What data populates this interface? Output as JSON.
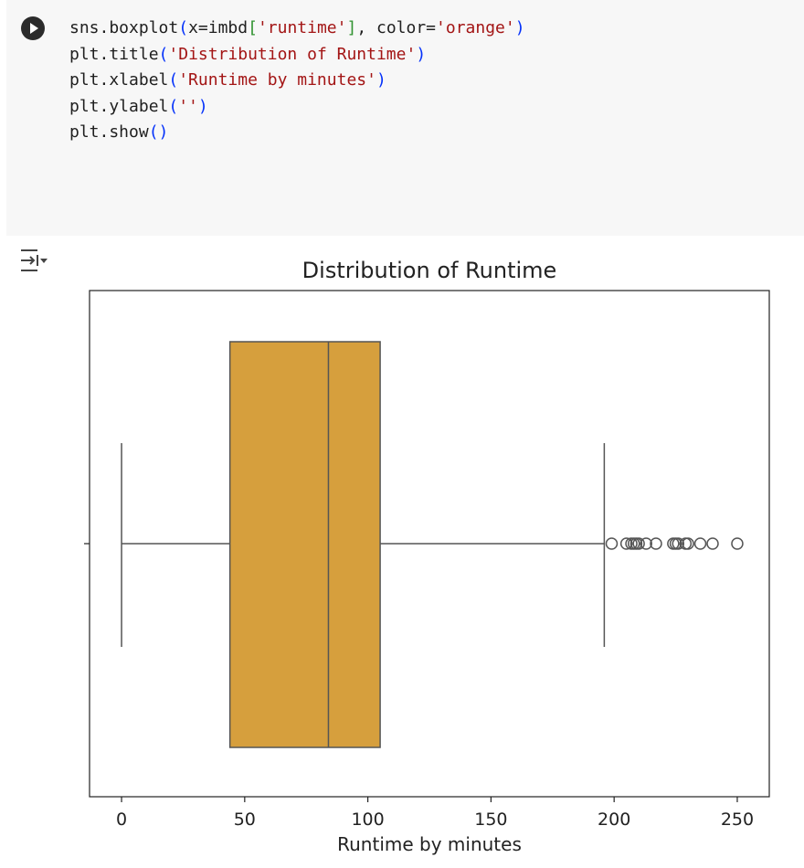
{
  "code_cell": {
    "run_icon": "play-icon",
    "lines": [
      [
        {
          "t": "sns.boxplot",
          "c": "plain"
        },
        {
          "t": "(",
          "c": "paren"
        },
        {
          "t": "x=imbd",
          "c": "plain"
        },
        {
          "t": "[",
          "c": "bracket"
        },
        {
          "t": "'runtime'",
          "c": "str"
        },
        {
          "t": "]",
          "c": "bracket"
        },
        {
          "t": ", color=",
          "c": "plain"
        },
        {
          "t": "'orange'",
          "c": "str"
        },
        {
          "t": ")",
          "c": "paren"
        }
      ],
      [
        {
          "t": "plt.title",
          "c": "plain"
        },
        {
          "t": "(",
          "c": "paren"
        },
        {
          "t": "'Distribution of Runtime'",
          "c": "str"
        },
        {
          "t": ")",
          "c": "paren"
        }
      ],
      [
        {
          "t": "plt.xlabel",
          "c": "plain"
        },
        {
          "t": "(",
          "c": "paren"
        },
        {
          "t": "'Runtime by minutes'",
          "c": "str"
        },
        {
          "t": ")",
          "c": "paren"
        }
      ],
      [
        {
          "t": "plt.ylabel",
          "c": "plain"
        },
        {
          "t": "(",
          "c": "paren"
        },
        {
          "t": "''",
          "c": "str"
        },
        {
          "t": ")",
          "c": "paren"
        }
      ],
      [
        {
          "t": "plt.show",
          "c": "plain"
        },
        {
          "t": "()",
          "c": "paren"
        }
      ]
    ]
  },
  "output": {
    "toggle_icon": "output-collapse-icon"
  },
  "chart_data": {
    "type": "boxplot",
    "orientation": "horizontal",
    "title": "Distribution of Runtime",
    "xlabel": "Runtime by minutes",
    "ylabel": "",
    "xlim": [
      -13,
      263
    ],
    "xticks": [
      0,
      50,
      100,
      150,
      200,
      250
    ],
    "grid": false,
    "box_color": "#d69f3d",
    "line_color": "#555555",
    "stats": {
      "whisker_low": 0,
      "q1": 44,
      "median": 84,
      "q3": 105,
      "whisker_high": 196
    },
    "outliers": [
      199,
      205,
      207,
      208,
      209,
      210,
      213,
      217,
      224,
      225,
      226,
      229,
      230,
      235,
      240,
      250
    ]
  }
}
